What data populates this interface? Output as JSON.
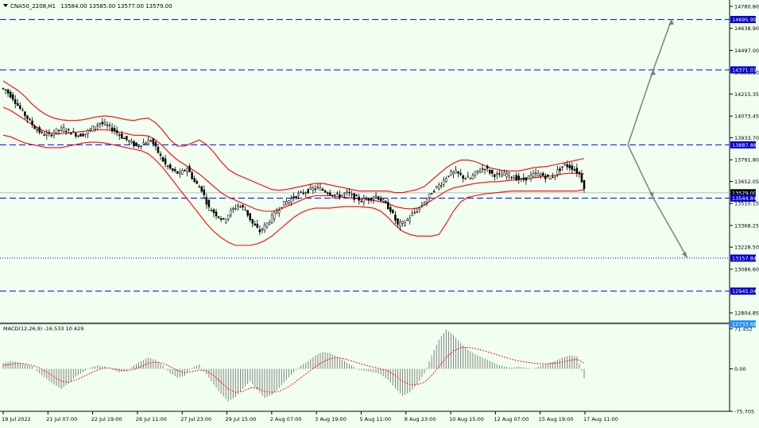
{
  "header": {
    "symbol": "CNA50_2208,H1",
    "ohlc": "13584.00 13585.00 13577.00 13579.00"
  },
  "indicator": {
    "label": "MACD(12,26,9) -16.533 10.429"
  },
  "colors": {
    "background": "#f0fff0",
    "candle": "#000000",
    "bollinger": "#ff0000",
    "level_line": "#0000ff",
    "arrow": "#808080",
    "macd_hist": "#808080",
    "macd_signal": "#ff0000",
    "tag_bg": "#0000cd",
    "tag_text": "#ffffff"
  },
  "chart_data": [
    {
      "type": "candlestick",
      "price_axis": {
        "ticks": [
          "14780.80",
          "14638.90",
          "14497.00",
          "14355.10",
          "14215.35",
          "14073.45",
          "13933.70",
          "13791.80",
          "13652.05",
          "13510.15",
          "13368.25",
          "13228.50",
          "13086.60",
          "12804.85"
        ],
        "min": 12720,
        "max": 14800
      },
      "time_axis": {
        "labels": [
          "19 Jul 2022",
          "21 Jul 07:00",
          "22 Jul 19:00",
          "26 Jul 11:00",
          "27 Jul 23:00",
          "29 Jul 15:00",
          "2 Aug 07:00",
          "3 Aug 19:00",
          "5 Aug 11:00",
          "8 Aug 23:00",
          "10 Aug 15:00",
          "12 Aug 07:00",
          "15 Aug 19:00",
          "17 Aug 11:00"
        ]
      },
      "levels": [
        {
          "price": 14695.99,
          "tag": "14695.99",
          "style": "dashed"
        },
        {
          "price": 14371.01,
          "tag": "14371.01",
          "style": "dashed"
        },
        {
          "price": 13887.88,
          "tag": "13887.88",
          "style": "dashed"
        },
        {
          "price": 13579.0,
          "tag": "13579.00",
          "style": "current"
        },
        {
          "price": 13544.84,
          "tag": "13544.84",
          "style": "dashed"
        },
        {
          "price": 13157.84,
          "tag": "13157.84",
          "style": "dotted"
        },
        {
          "price": 12945.04,
          "tag": "12945.04",
          "style": "dashed"
        },
        {
          "price": 12733.68,
          "tag": "12733.68",
          "style": "solid"
        }
      ],
      "close_path": [
        14240,
        14190,
        14120,
        14060,
        14000,
        13960,
        13950,
        13980,
        13990,
        13970,
        13950,
        13960,
        14000,
        14030,
        14010,
        13980,
        13940,
        13910,
        13880,
        13900,
        13920,
        13840,
        13760,
        13720,
        13700,
        13740,
        13650,
        13600,
        13480,
        13440,
        13400,
        13460,
        13500,
        13470,
        13380,
        13330,
        13380,
        13440,
        13500,
        13530,
        13560,
        13580,
        13600,
        13610,
        13590,
        13570,
        13560,
        13580,
        13550,
        13530,
        13540,
        13560,
        13520,
        13470,
        13370,
        13390,
        13440,
        13480,
        13540,
        13600,
        13640,
        13700,
        13710,
        13680,
        13670,
        13720,
        13740,
        13700,
        13690,
        13700,
        13680,
        13660,
        13680,
        13700,
        13690,
        13670,
        13720,
        13760,
        13740,
        13700,
        13579
      ],
      "bollinger_upper": [
        14300,
        14270,
        14240,
        14200,
        14150,
        14110,
        14080,
        14060,
        14050,
        14045,
        14045,
        14050,
        14060,
        14070,
        14075,
        14070,
        14060,
        14050,
        14045,
        14055,
        14060,
        14030,
        13980,
        13920,
        13880,
        13880,
        13900,
        13920,
        13890,
        13840,
        13780,
        13730,
        13700,
        13680,
        13660,
        13640,
        13620,
        13600,
        13595,
        13600,
        13610,
        13620,
        13630,
        13640,
        13640,
        13630,
        13620,
        13610,
        13600,
        13590,
        13590,
        13590,
        13590,
        13590,
        13580,
        13580,
        13590,
        13600,
        13620,
        13660,
        13700,
        13740,
        13770,
        13790,
        13790,
        13780,
        13760,
        13740,
        13730,
        13720,
        13720,
        13720,
        13730,
        13740,
        13745,
        13750,
        13760,
        13770,
        13780,
        13790,
        13800
      ],
      "bollinger_middle": [
        14130,
        14110,
        14080,
        14050,
        14020,
        13990,
        13970,
        13960,
        13960,
        13965,
        13970,
        13975,
        13980,
        13985,
        13985,
        13980,
        13970,
        13960,
        13950,
        13950,
        13945,
        13920,
        13880,
        13830,
        13790,
        13760,
        13730,
        13700,
        13660,
        13620,
        13580,
        13550,
        13530,
        13510,
        13490,
        13470,
        13460,
        13460,
        13470,
        13490,
        13510,
        13530,
        13550,
        13560,
        13560,
        13560,
        13555,
        13550,
        13545,
        13540,
        13535,
        13530,
        13520,
        13510,
        13490,
        13480,
        13475,
        13480,
        13500,
        13530,
        13560,
        13590,
        13610,
        13620,
        13630,
        13640,
        13645,
        13650,
        13650,
        13655,
        13660,
        13665,
        13670,
        13675,
        13680,
        13685,
        13690,
        13700,
        13705,
        13705,
        13700
      ],
      "bollinger_lower": [
        13950,
        13940,
        13920,
        13900,
        13890,
        13880,
        13870,
        13870,
        13870,
        13880,
        13890,
        13900,
        13905,
        13905,
        13900,
        13890,
        13880,
        13870,
        13860,
        13850,
        13830,
        13790,
        13740,
        13680,
        13620,
        13560,
        13500,
        13440,
        13380,
        13330,
        13290,
        13260,
        13240,
        13240,
        13240,
        13250,
        13270,
        13300,
        13340,
        13380,
        13420,
        13450,
        13470,
        13480,
        13480,
        13480,
        13485,
        13490,
        13490,
        13490,
        13485,
        13480,
        13460,
        13420,
        13370,
        13330,
        13310,
        13300,
        13300,
        13300,
        13310,
        13380,
        13460,
        13520,
        13550,
        13560,
        13570,
        13575,
        13580,
        13585,
        13590,
        13590,
        13590,
        13590,
        13590,
        13590,
        13590,
        13590,
        13590,
        13590,
        13600
      ],
      "projection": {
        "pivot": 13887.88,
        "up_targets": [
          14371.01,
          14695.99
        ],
        "down_targets": [
          13544.84,
          13157.84
        ]
      }
    },
    {
      "type": "bar",
      "title": "MACD(12,26,9)",
      "ticks": [
        "71.452",
        "0.00",
        "-75.705"
      ],
      "min": -75.705,
      "max": 71.452,
      "macd": [
        10,
        14,
        12,
        8,
        4,
        -8,
        -18,
        -28,
        -36,
        -26,
        -14,
        -6,
        2,
        6,
        4,
        -2,
        -6,
        -4,
        6,
        14,
        20,
        16,
        6,
        -8,
        -16,
        -12,
        2,
        8,
        -10,
        -28,
        -45,
        -58,
        -50,
        -36,
        -22,
        -38,
        -52,
        -46,
        -34,
        -20,
        -6,
        6,
        14,
        24,
        30,
        28,
        22,
        14,
        6,
        -2,
        -4,
        -6,
        -10,
        -20,
        -35,
        -48,
        -42,
        -28,
        -8,
        24,
        52,
        70,
        60,
        46,
        34,
        26,
        20,
        14,
        8,
        4,
        2,
        4,
        2,
        0,
        6,
        10,
        14,
        20,
        24,
        22,
        -16.533
      ],
      "signal": [
        6,
        8,
        10,
        9,
        6,
        2,
        -6,
        -14,
        -22,
        -24,
        -20,
        -14,
        -8,
        -2,
        2,
        1,
        -2,
        -3,
        -1,
        4,
        10,
        12,
        10,
        4,
        -3,
        -7,
        -5,
        -2,
        -4,
        -12,
        -24,
        -36,
        -42,
        -40,
        -34,
        -34,
        -40,
        -42,
        -40,
        -34,
        -26,
        -16,
        -6,
        4,
        12,
        18,
        20,
        18,
        14,
        10,
        6,
        3,
        0,
        -4,
        -12,
        -22,
        -28,
        -28,
        -24,
        -12,
        4,
        20,
        32,
        38,
        38,
        36,
        33,
        29,
        25,
        21,
        17,
        14,
        12,
        10,
        9,
        9,
        10,
        12,
        15,
        17,
        10.429
      ]
    }
  ]
}
